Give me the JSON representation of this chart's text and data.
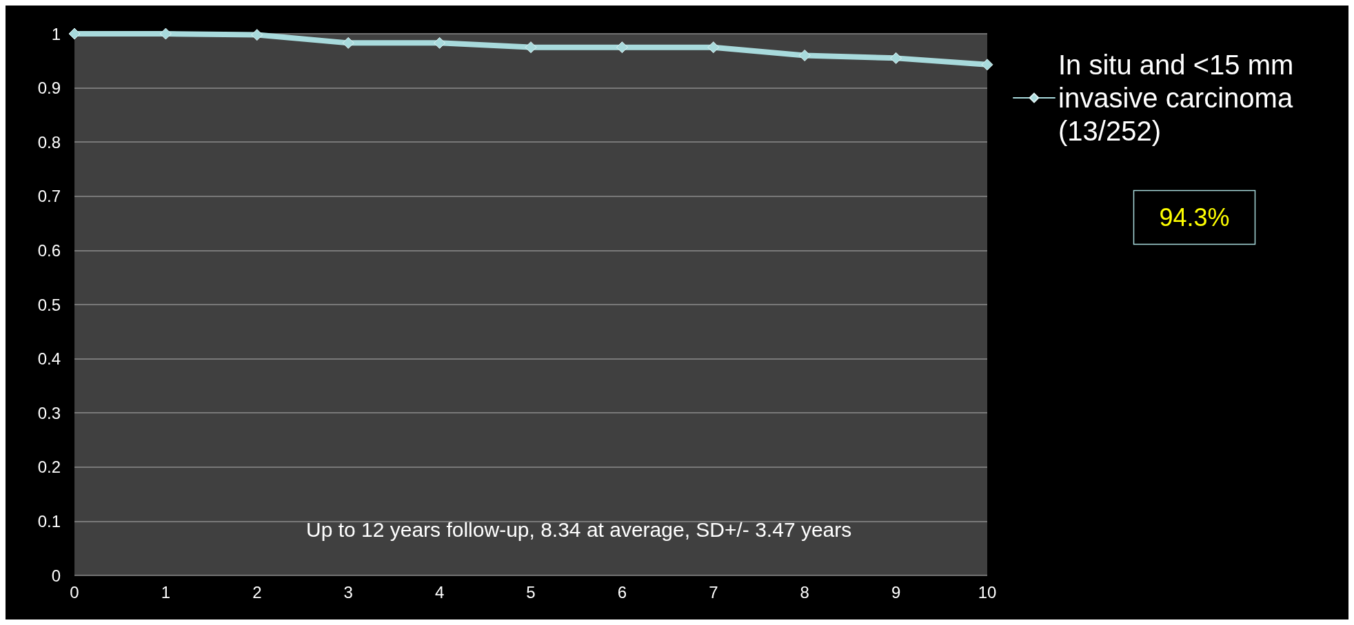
{
  "chart_data": {
    "type": "line",
    "categories": [
      "0",
      "1",
      "2",
      "3",
      "4",
      "5",
      "6",
      "7",
      "8",
      "9",
      "10"
    ],
    "series": [
      {
        "name": "In situ and <15 mm invasive carcinoma (13/252)",
        "color": "#a8dadc",
        "values": [
          1,
          1,
          0.998,
          0.983,
          0.983,
          0.975,
          0.975,
          0.975,
          0.96,
          0.955,
          0.943
        ]
      }
    ],
    "ylim": [
      0,
      1
    ],
    "yticks": [
      0,
      0.1,
      0.2,
      0.3,
      0.4,
      0.5,
      0.6,
      0.7,
      0.8,
      0.9,
      1
    ],
    "grid": "y",
    "legend": "right",
    "marker": "diamond",
    "line_style": "solid",
    "annotations": [
      "Up to 12 years follow-up, 8.34 at average, SD+/- 3.47 years",
      "94.3%"
    ]
  }
}
